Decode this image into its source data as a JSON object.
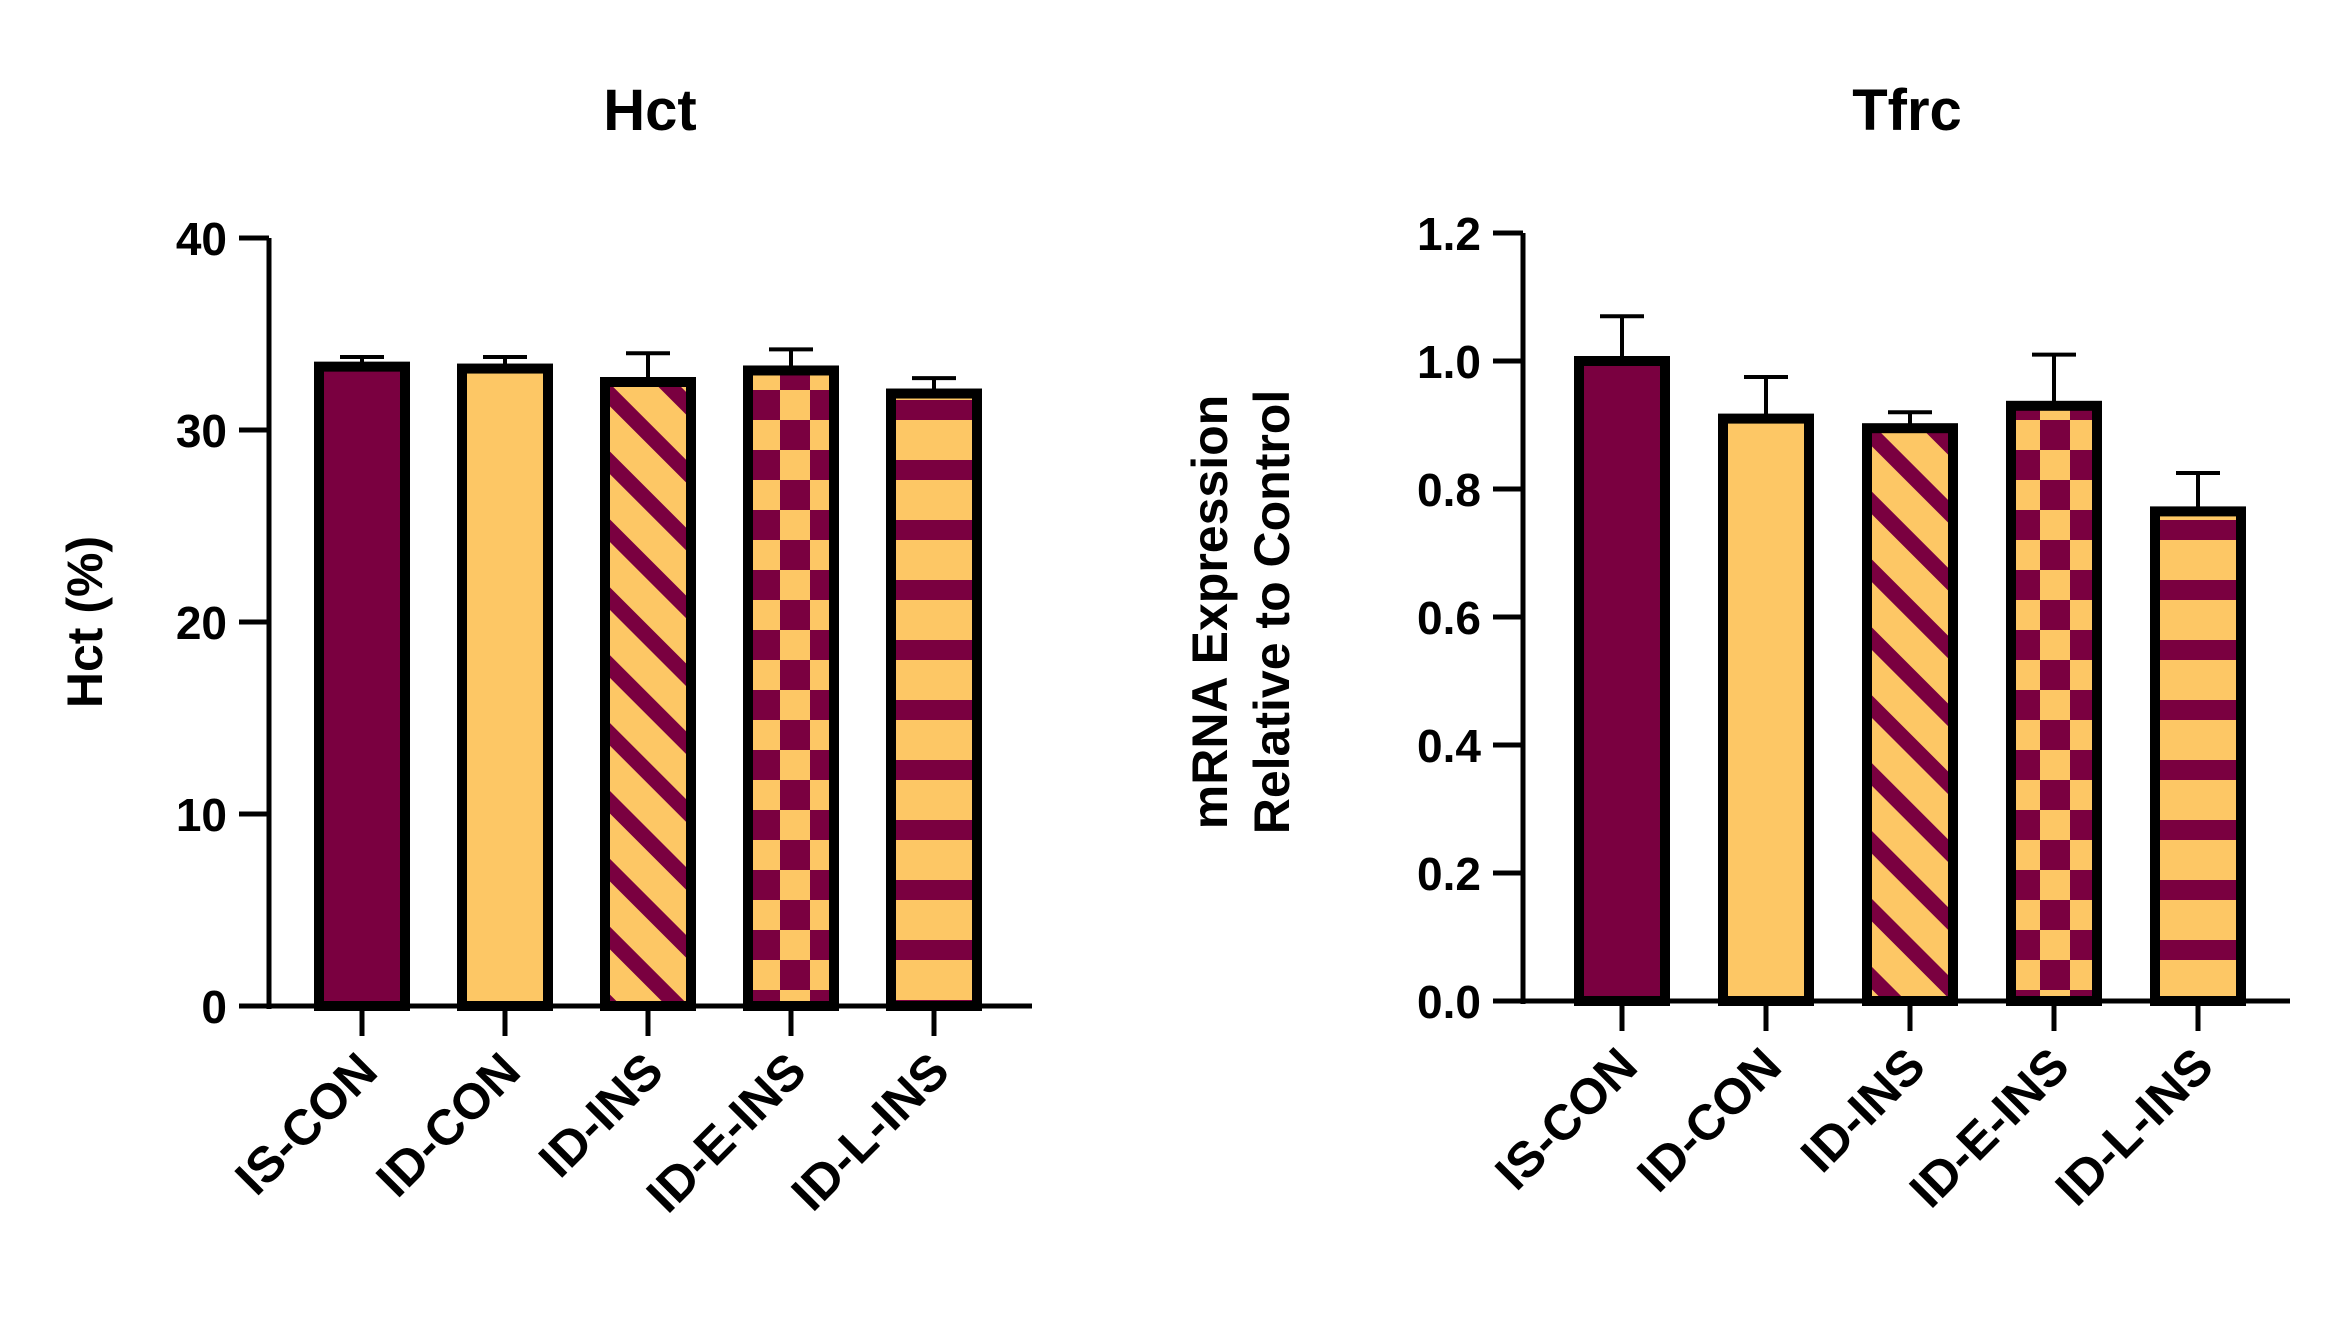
{
  "colors": {
    "maroon": "#7A0040",
    "gold": "#FDC765",
    "axis": "#000000"
  },
  "chart_data": [
    {
      "type": "bar",
      "title": "Hct",
      "xlabel": "",
      "ylabel": "Hct (%)",
      "ylabel_lines": [
        "Hct (%)"
      ],
      "ylim": [
        0,
        40
      ],
      "yticks": [
        "0",
        "10",
        "20",
        "30",
        "40"
      ],
      "categories": [
        "IS-CON",
        "ID-CON",
        "ID-INS",
        "ID-E-INS",
        "ID-L-INS"
      ],
      "values": [
        33.3,
        33.2,
        32.5,
        33.1,
        31.9
      ],
      "errors": [
        0.5,
        0.6,
        1.5,
        1.1,
        0.8
      ],
      "patterns": [
        "solid-maroon",
        "solid-gold",
        "diagonal",
        "checker",
        "horizontal"
      ],
      "grid": false,
      "legend": "none"
    },
    {
      "type": "bar",
      "title": "Tfrc",
      "xlabel": "",
      "ylabel": "mRNA Expression Relative to Control",
      "ylabel_lines": [
        "mRNA Expression",
        "Relative to Control"
      ],
      "ylim": [
        0,
        1.2
      ],
      "yticks": [
        "0.0",
        "0.2",
        "0.4",
        "0.6",
        "0.8",
        "1.0",
        "1.2"
      ],
      "categories": [
        "IS-CON",
        "ID-CON",
        "ID-INS",
        "ID-E-INS",
        "ID-L-INS"
      ],
      "values": [
        1.0,
        0.91,
        0.895,
        0.93,
        0.765
      ],
      "errors": [
        0.07,
        0.065,
        0.025,
        0.08,
        0.06
      ],
      "patterns": [
        "solid-maroon",
        "solid-gold",
        "diagonal",
        "checker",
        "horizontal"
      ],
      "grid": false,
      "legend": "none"
    }
  ]
}
